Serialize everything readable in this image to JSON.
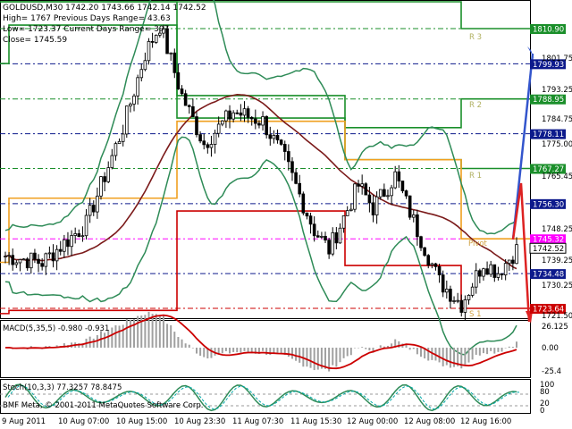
{
  "header": {
    "line1": "GOLDUSD,M30  1742.20 1743.66 1742.14 1742.52",
    "info": [
      "High= 1767    Previous Days Range= 43.63",
      "Low= 1723.37    Current Days Range= 397",
      "Close= 1745.59"
    ]
  },
  "price_axis": {
    "ticks": [
      "1801.75",
      "1793.25",
      "1784.75",
      "1775.00",
      "1765.45",
      "1748.25",
      "1739.25",
      "1730.25",
      "1721.50"
    ]
  },
  "price_levels": [
    {
      "label": "1810.90",
      "value": 1810.9,
      "color": "#1a8f2a"
    },
    {
      "label": "1799.93",
      "value": 1799.93,
      "color": "#0d1a8c"
    },
    {
      "label": "1788.95",
      "value": 1788.95,
      "color": "#1a8f2a"
    },
    {
      "label": "1778.11",
      "value": 1778.11,
      "color": "#0d1a8c"
    },
    {
      "label": "1767.27",
      "value": 1767.27,
      "color": "#1a8f2a"
    },
    {
      "label": "1756.30",
      "value": 1756.3,
      "color": "#0d1a8c"
    },
    {
      "label": "1745.32",
      "value": 1745.32,
      "color": "#ff00ff"
    },
    {
      "label": "1742.52",
      "value": 1742.52,
      "color": "#ffffff"
    },
    {
      "label": "1734.48",
      "value": 1734.48,
      "color": "#0d1a8c"
    },
    {
      "label": "1723.64",
      "value": 1723.64,
      "color": "#cc0000"
    }
  ],
  "pivot_labels": [
    "R 3",
    "R 2",
    "R 1",
    "Pivot",
    "S 1"
  ],
  "macd": {
    "label": "MACD(5,35,5) -0.980 -0.931",
    "ticks": [
      "26.125",
      "0.00",
      "-25.4"
    ]
  },
  "stoch": {
    "label": "Stoch(10,3,3) 77.3257 78.8475",
    "ticks": [
      "100",
      "80",
      "20",
      "0"
    ]
  },
  "time_axis": [
    "9 Aug 2011",
    "10 Aug 07:00",
    "10 Aug 15:00",
    "10 Aug 23:30",
    "11 Aug 07:30",
    "11 Aug 15:30",
    "12 Aug 00:00",
    "12 Aug 08:00",
    "12 Aug 16:00"
  ],
  "copyright": "BMF Meta, © 2001-2011 MetaQuotes Software Corp.",
  "colors": {
    "bg": "#ffffff",
    "candle": "#000000",
    "bollinger": "#2e8b57",
    "ma": "#7b1a1a",
    "pivot_r": "#1a8f2a",
    "pivot_p": "#f0a020",
    "pivot_s": "#cc0000",
    "macd_hist": "#a0a0a0",
    "macd_signal": "#cc0000",
    "stoch_main": "#2e8b57",
    "stoch_signal": "#00aaaa"
  }
}
